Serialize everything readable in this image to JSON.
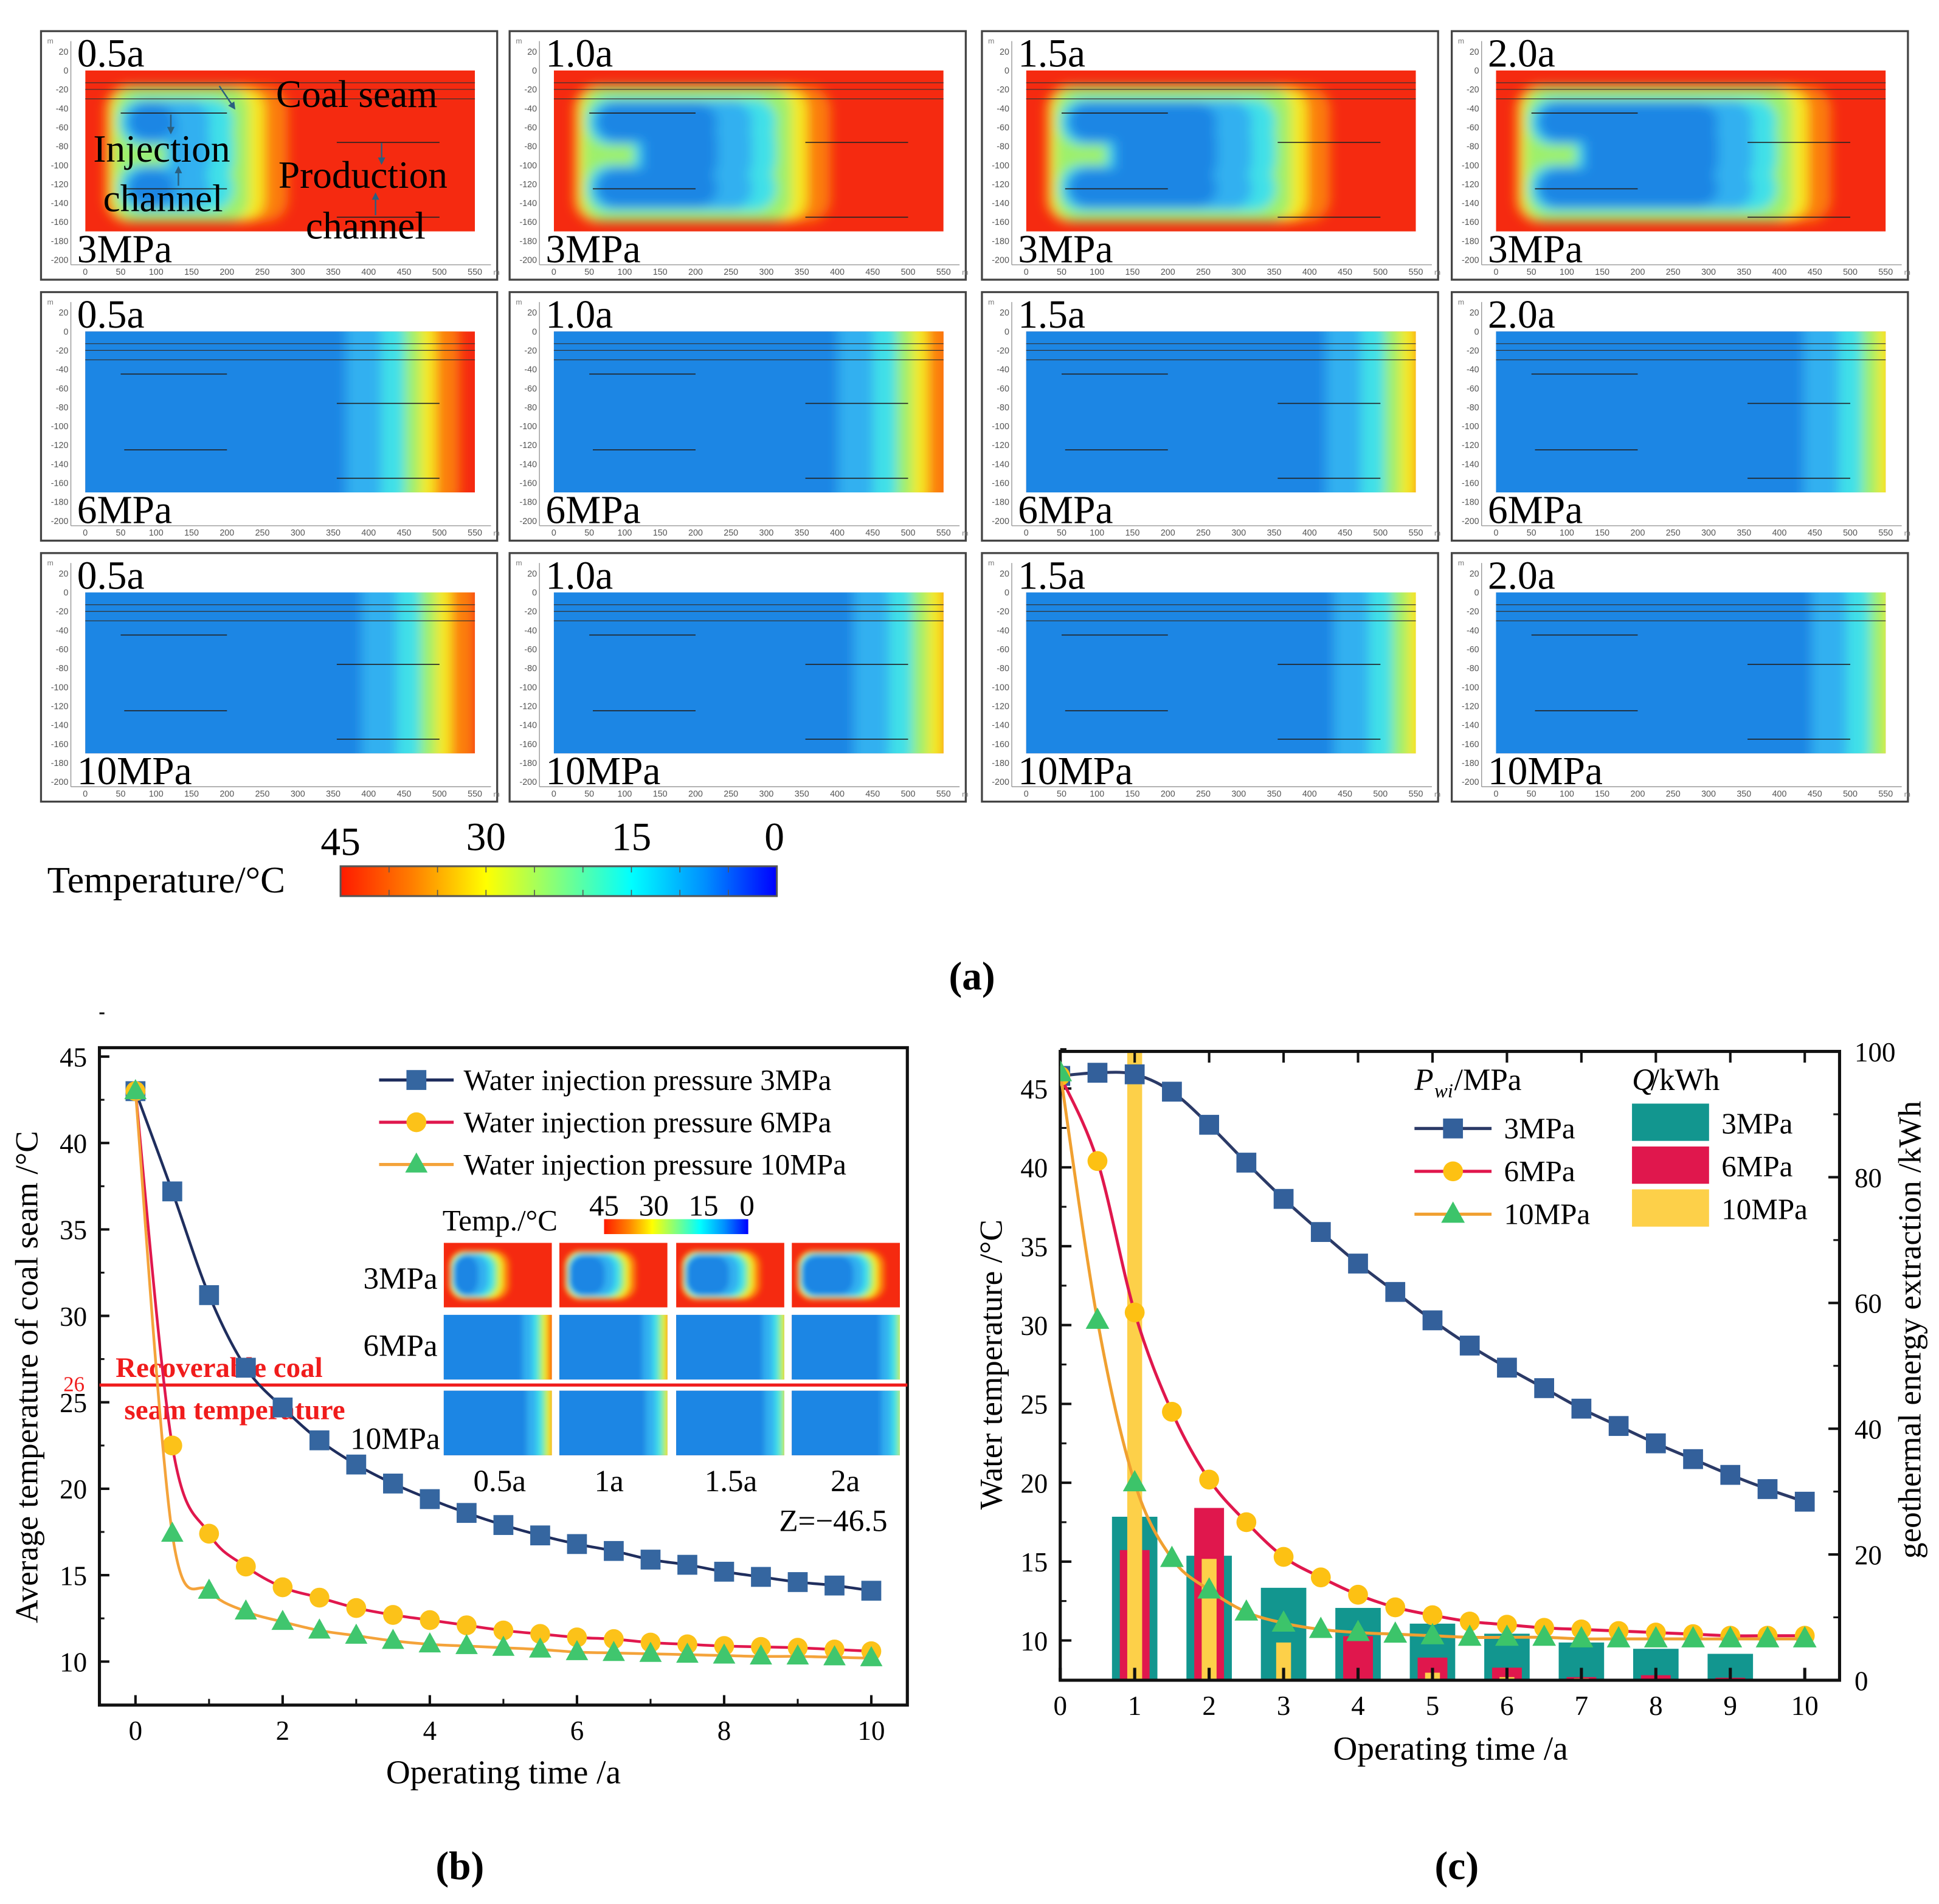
{
  "figure_a": {
    "label": "(a)",
    "panels": [
      {
        "time": "0.5a",
        "pressure": "3MPa"
      },
      {
        "time": "1.0a",
        "pressure": "3MPa"
      },
      {
        "time": "1.5a",
        "pressure": "3MPa"
      },
      {
        "time": "2.0a",
        "pressure": "3MPa"
      },
      {
        "time": "0.5a",
        "pressure": "6MPa"
      },
      {
        "time": "1.0a",
        "pressure": "6MPa"
      },
      {
        "time": "1.5a",
        "pressure": "6MPa"
      },
      {
        "time": "2.0a",
        "pressure": "6MPa"
      },
      {
        "time": "0.5a",
        "pressure": "10MPa"
      },
      {
        "time": "1.0a",
        "pressure": "10MPa"
      },
      {
        "time": "1.5a",
        "pressure": "10MPa"
      },
      {
        "time": "2.0a",
        "pressure": "10MPa"
      }
    ],
    "annotations": {
      "coal_seam": "Coal seam",
      "injection_1": "Injection",
      "injection_2": "channel",
      "production_1": "Production",
      "production_2": "channel"
    },
    "y_ticks": [
      "20",
      "0",
      "-20",
      "-40",
      "-60",
      "-80",
      "-100",
      "-120",
      "-140",
      "-160",
      "-180",
      "-200"
    ],
    "x_ticks": [
      "0",
      "50",
      "100",
      "150",
      "200",
      "250",
      "300",
      "350",
      "400",
      "450",
      "500",
      "550"
    ],
    "unit": "m",
    "colorbar": {
      "title": "Temperature/°C",
      "ticks": [
        "45",
        "30",
        "15",
        "0"
      ],
      "colors": [
        "#ff1a00",
        "#ff8000",
        "#ffff00",
        "#80ff80",
        "#00ffff",
        "#0090ff",
        "#0000ff"
      ]
    }
  },
  "chart_data": [
    {
      "type": "line",
      "panel_label": "(b)",
      "xlabel": "Operating time /a",
      "ylabel": "Average temperature of coal seam /°C",
      "xlim": [
        -0.5,
        10.5
      ],
      "ylim": [
        7.5,
        45.5
      ],
      "x_ticks": [
        0,
        2,
        4,
        6,
        8,
        10
      ],
      "y_ticks": [
        10,
        15,
        20,
        25,
        30,
        35,
        40,
        45
      ],
      "legend": "top-right",
      "x": [
        0,
        0.5,
        1,
        1.5,
        2,
        2.5,
        3,
        3.5,
        4,
        4.5,
        5,
        5.5,
        6,
        6.5,
        7,
        7.5,
        8,
        8.5,
        9,
        9.5,
        10
      ],
      "series": [
        {
          "name": "Water injection pressure 3MPa",
          "line_color": "#1f2e5e",
          "marker_color": "#3566a0",
          "marker": "square",
          "values": [
            43,
            37.2,
            31.2,
            27,
            24.7,
            22.8,
            21.4,
            20.3,
            19.4,
            18.6,
            17.9,
            17.3,
            16.8,
            16.4,
            15.9,
            15.6,
            15.2,
            14.9,
            14.6,
            14.4,
            14.1
          ]
        },
        {
          "name": "Water injection pressure 6MPa",
          "line_color": "#e0174d",
          "marker_color": "#fcc219",
          "marker": "circle",
          "values": [
            43,
            22.5,
            17.4,
            15.5,
            14.3,
            13.7,
            13.1,
            12.7,
            12.4,
            12.1,
            11.8,
            11.6,
            11.4,
            11.3,
            11.1,
            11.0,
            10.9,
            10.85,
            10.8,
            10.7,
            10.6
          ]
        },
        {
          "name": "Water injection pressure 10MPa",
          "line_color": "#f4a33a",
          "marker_color": "#40c66e",
          "marker": "triangle",
          "values": [
            43,
            17.4,
            14.1,
            12.9,
            12.3,
            11.8,
            11.5,
            11.2,
            11.0,
            10.9,
            10.8,
            10.7,
            10.55,
            10.5,
            10.45,
            10.4,
            10.35,
            10.3,
            10.3,
            10.25,
            10.2
          ]
        }
      ],
      "threshold": {
        "value": 26,
        "tick_label": "26",
        "label_1": "Recoverable coal",
        "label_2": "seam temperature",
        "color": "#f01c1c"
      },
      "inset": {
        "title": "Temp./°C",
        "colorbar_ticks": [
          "45",
          "30",
          "15",
          "0"
        ],
        "rows": [
          "3MPa",
          "6MPa",
          "10MPa"
        ],
        "columns": [
          "0.5a",
          "1a",
          "1.5a",
          "2a"
        ],
        "note": "Z=−46.5"
      }
    },
    {
      "type": "line+bar",
      "panel_label": "(c)",
      "xlabel": "Operating time /a",
      "ylabel": "Water temperature /°C",
      "y2label": "geothermal energy extraction /kWh",
      "xlim": [
        0,
        10.47
      ],
      "ylim": [
        7.5,
        47.4
      ],
      "y2lim": [
        0,
        100
      ],
      "x_ticks": [
        0,
        1,
        2,
        3,
        4,
        5,
        6,
        7,
        8,
        9,
        10
      ],
      "y_ticks": [
        10,
        15,
        20,
        25,
        30,
        35,
        40,
        45
      ],
      "y2_ticks": [
        0,
        20,
        40,
        60,
        80,
        100
      ],
      "legend": {
        "line_title": "P",
        "line_title_sub": "wi",
        "line_title_unit": " /MPa",
        "bar_title": "Q",
        "bar_title_unit": " /kWh",
        "placement": "top-right"
      },
      "x": [
        0,
        0.5,
        1,
        1.5,
        2,
        2.5,
        3,
        3.5,
        4,
        4.5,
        5,
        5.5,
        6,
        6.5,
        7,
        7.5,
        8,
        8.5,
        9,
        9.5,
        10
      ],
      "series": [
        {
          "name": "3MPa",
          "line_color": "#2b3a67",
          "marker_color": "#33609b",
          "marker": "square",
          "values": [
            45.8,
            46,
            45.9,
            44.8,
            42.7,
            40.3,
            38,
            35.9,
            33.9,
            32.1,
            30.3,
            28.7,
            27.3,
            26,
            24.7,
            23.6,
            22.5,
            21.5,
            20.5,
            19.6,
            18.8
          ]
        },
        {
          "name": "6MPa",
          "line_color": "#e0174d",
          "marker_color": "#fdc113",
          "marker": "circle",
          "values": [
            45.8,
            40.4,
            30.8,
            24.5,
            20.2,
            17.5,
            15.3,
            14,
            12.9,
            12.1,
            11.6,
            11.2,
            11,
            10.8,
            10.7,
            10.6,
            10.5,
            10.4,
            10.3,
            10.3,
            10.3
          ]
        },
        {
          "name": "10MPa",
          "line_color": "#f0a030",
          "marker_color": "#3cc46a",
          "marker": "triangle",
          "values": [
            46,
            30.3,
            20,
            15.2,
            13.2,
            11.8,
            11.1,
            10.7,
            10.5,
            10.4,
            10.3,
            10.2,
            10.2,
            10.2,
            10.1,
            10.1,
            10.1,
            10.1,
            10.1,
            10.1,
            10.1
          ]
        }
      ],
      "bars": {
        "x": [
          1,
          2,
          3,
          4,
          5,
          6,
          7,
          8,
          9
        ],
        "series": [
          {
            "name": "3MPa",
            "color": "#12968f",
            "values": [
              26,
              19.8,
              14.7,
              11.5,
              9,
              7.4,
              6,
              5,
              4.2
            ]
          },
          {
            "name": "6MPa",
            "color": "#e0174d",
            "values": [
              20.7,
              27.4,
              0,
              7,
              3.6,
              2,
              0.5,
              0.8,
              0.4
            ]
          },
          {
            "name": "10MPa",
            "color": "#fdd049",
            "values": [
              100,
              19.3,
              6,
              0,
              1.2,
              0.5,
              0.3,
              0,
              0
            ]
          }
        ]
      }
    }
  ]
}
